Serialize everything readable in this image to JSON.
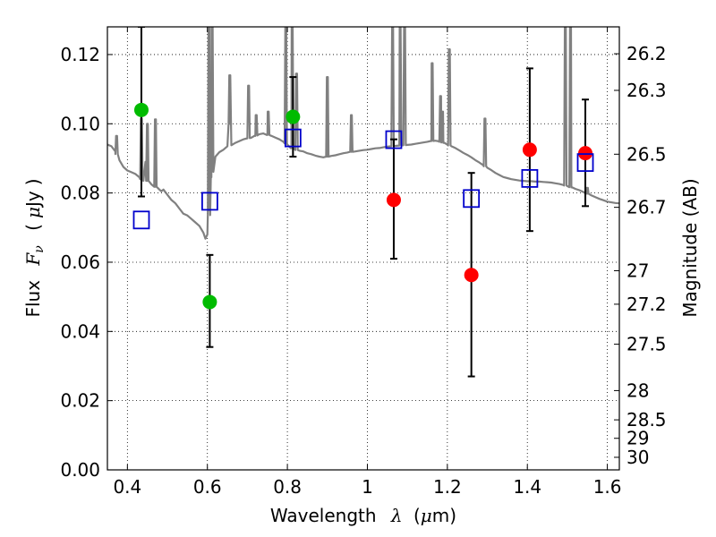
{
  "chart_data": {
    "type": "scatter",
    "title": "",
    "xlabel_text": "Wavelength",
    "xlabel_symbol": "λ",
    "xlabel_unit_open": "(",
    "xlabel_unit_mu": "μ",
    "xlabel_unit_rest": "m)",
    "ylabel_text": "Flux",
    "ylabel_symbol_F": "F",
    "ylabel_symbol_nu": "ν",
    "ylabel_unit_open": "(",
    "ylabel_unit_mu": "μ",
    "ylabel_unit_rest": "Jy",
    "ylabel_unit_close": ")",
    "ylabel_right": "Magnitude (AB)",
    "xlim": [
      0.35,
      1.63
    ],
    "ylim": [
      0.0,
      0.128
    ],
    "grid": true,
    "x_ticks": [
      0.4,
      0.6,
      0.8,
      1.0,
      1.2,
      1.4,
      1.6
    ],
    "x_tick_labels": [
      "0.4",
      "0.6",
      "0.8",
      "1",
      "1.2",
      "1.4",
      "1.6"
    ],
    "y_ticks": [
      0.0,
      0.02,
      0.04,
      0.06,
      0.08,
      0.1,
      0.12
    ],
    "y_tick_labels": [
      "0.00",
      "0.02",
      "0.04",
      "0.06",
      "0.08",
      "0.10",
      "0.12"
    ],
    "mag_ticks": [
      26.2,
      26.3,
      26.5,
      26.7,
      27,
      27.2,
      27.5,
      28,
      28.5,
      29,
      30
    ],
    "mag_tick_labels": [
      "26.2",
      "26.3",
      "26.5",
      "26.7",
      "27",
      "27.2",
      "27.5",
      "28",
      "28.5",
      "29",
      "30"
    ],
    "colors": {
      "green": "#00bb00",
      "red": "#ff0000",
      "model_square": "#0000cc",
      "spectrum": "#808080",
      "errorbar": "#000000"
    },
    "series": [
      {
        "marker": "circle",
        "color": "green",
        "points": [
          {
            "x": 0.435,
            "y": 0.104,
            "yerr_low": 0.079,
            "yerr_high": 0.128
          },
          {
            "x": 0.606,
            "y": 0.0485,
            "yerr_low": 0.0355,
            "yerr_high": 0.0621
          },
          {
            "x": 0.814,
            "y": 0.102,
            "yerr_low": 0.0905,
            "yerr_high": 0.1135
          }
        ]
      },
      {
        "marker": "circle",
        "color": "red",
        "points": [
          {
            "x": 1.066,
            "y": 0.078,
            "yerr_low": 0.061,
            "yerr_high": 0.0955
          },
          {
            "x": 1.26,
            "y": 0.0563,
            "yerr_low": 0.027,
            "yerr_high": 0.0858
          },
          {
            "x": 1.406,
            "y": 0.0925,
            "yerr_low": 0.069,
            "yerr_high": 0.116
          },
          {
            "x": 1.545,
            "y": 0.0915,
            "yerr_low": 0.0762,
            "yerr_high": 0.107
          }
        ]
      },
      {
        "marker": "square",
        "color": "model_square",
        "points": [
          {
            "x": 0.435,
            "y": 0.0722
          },
          {
            "x": 0.606,
            "y": 0.0776
          },
          {
            "x": 0.814,
            "y": 0.0959
          },
          {
            "x": 1.066,
            "y": 0.0954
          },
          {
            "x": 1.26,
            "y": 0.0784
          },
          {
            "x": 1.406,
            "y": 0.0842
          },
          {
            "x": 1.545,
            "y": 0.0888
          }
        ]
      }
    ],
    "spectrum": [
      [
        0.35,
        0.094
      ],
      [
        0.36,
        0.0935
      ],
      [
        0.37,
        0.092
      ],
      [
        0.38,
        0.0895
      ],
      [
        0.39,
        0.0875
      ],
      [
        0.4,
        0.0865
      ],
      [
        0.41,
        0.086
      ],
      [
        0.42,
        0.0855
      ],
      [
        0.43,
        0.0845
      ],
      [
        0.44,
        0.0835
      ],
      [
        0.445,
        0.089
      ],
      [
        0.45,
        0.0835
      ],
      [
        0.46,
        0.0825
      ],
      [
        0.47,
        0.0818
      ],
      [
        0.48,
        0.081
      ],
      [
        0.485,
        0.0805
      ],
      [
        0.49,
        0.081
      ],
      [
        0.5,
        0.0795
      ],
      [
        0.51,
        0.078
      ],
      [
        0.52,
        0.077
      ],
      [
        0.53,
        0.0755
      ],
      [
        0.54,
        0.074
      ],
      [
        0.55,
        0.0735
      ],
      [
        0.56,
        0.0725
      ],
      [
        0.57,
        0.0715
      ],
      [
        0.58,
        0.0705
      ],
      [
        0.585,
        0.0695
      ],
      [
        0.59,
        0.0685
      ],
      [
        0.595,
        0.0668
      ],
      [
        0.6,
        0.068
      ],
      [
        0.605,
        0.075
      ],
      [
        0.61,
        0.0845
      ],
      [
        0.615,
        0.0885
      ],
      [
        0.62,
        0.0905
      ],
      [
        0.63,
        0.0918
      ],
      [
        0.64,
        0.0925
      ],
      [
        0.65,
        0.0935
      ],
      [
        0.656,
        0.1
      ],
      [
        0.66,
        0.0938
      ],
      [
        0.67,
        0.0945
      ],
      [
        0.68,
        0.095
      ],
      [
        0.69,
        0.0955
      ],
      [
        0.7,
        0.0958
      ],
      [
        0.71,
        0.096
      ],
      [
        0.72,
        0.0965
      ],
      [
        0.73,
        0.097
      ],
      [
        0.74,
        0.0972
      ],
      [
        0.75,
        0.0968
      ],
      [
        0.76,
        0.0965
      ],
      [
        0.77,
        0.096
      ],
      [
        0.78,
        0.0955
      ],
      [
        0.79,
        0.0948
      ],
      [
        0.8,
        0.094
      ],
      [
        0.81,
        0.093
      ],
      [
        0.82,
        0.0925
      ],
      [
        0.83,
        0.0922
      ],
      [
        0.84,
        0.092
      ],
      [
        0.85,
        0.0915
      ],
      [
        0.86,
        0.0912
      ],
      [
        0.87,
        0.0908
      ],
      [
        0.88,
        0.0905
      ],
      [
        0.89,
        0.0903
      ],
      [
        0.9,
        0.0905
      ],
      [
        0.91,
        0.0907
      ],
      [
        0.92,
        0.0909
      ],
      [
        0.93,
        0.0912
      ],
      [
        0.94,
        0.0915
      ],
      [
        0.95,
        0.0917
      ],
      [
        0.96,
        0.0919
      ],
      [
        0.97,
        0.092
      ],
      [
        0.98,
        0.0922
      ],
      [
        0.99,
        0.0924
      ],
      [
        1.0,
        0.0925
      ],
      [
        1.01,
        0.0927
      ],
      [
        1.02,
        0.0929
      ],
      [
        1.03,
        0.093
      ],
      [
        1.04,
        0.0932
      ],
      [
        1.05,
        0.0934
      ],
      [
        1.06,
        0.0935
      ],
      [
        1.07,
        0.0936
      ],
      [
        1.08,
        0.0937
      ],
      [
        1.09,
        0.0938
      ],
      [
        1.1,
        0.0939
      ],
      [
        1.11,
        0.094
      ],
      [
        1.12,
        0.0942
      ],
      [
        1.13,
        0.0944
      ],
      [
        1.14,
        0.0946
      ],
      [
        1.15,
        0.0948
      ],
      [
        1.16,
        0.095
      ],
      [
        1.17,
        0.0951
      ],
      [
        1.18,
        0.0949
      ],
      [
        1.19,
        0.0945
      ],
      [
        1.2,
        0.094
      ],
      [
        1.21,
        0.0935
      ],
      [
        1.22,
        0.093
      ],
      [
        1.23,
        0.0923
      ],
      [
        1.24,
        0.0916
      ],
      [
        1.25,
        0.091
      ],
      [
        1.26,
        0.0903
      ],
      [
        1.27,
        0.0895
      ],
      [
        1.28,
        0.0888
      ],
      [
        1.29,
        0.088
      ],
      [
        1.3,
        0.0873
      ],
      [
        1.31,
        0.0866
      ],
      [
        1.32,
        0.0858
      ],
      [
        1.33,
        0.0852
      ],
      [
        1.34,
        0.0846
      ],
      [
        1.35,
        0.0843
      ],
      [
        1.36,
        0.084
      ],
      [
        1.37,
        0.0838
      ],
      [
        1.38,
        0.0836
      ],
      [
        1.39,
        0.0835
      ],
      [
        1.4,
        0.0834
      ],
      [
        1.41,
        0.0834
      ],
      [
        1.42,
        0.0833
      ],
      [
        1.43,
        0.0833
      ],
      [
        1.44,
        0.0832
      ],
      [
        1.45,
        0.0831
      ],
      [
        1.46,
        0.083
      ],
      [
        1.47,
        0.0828
      ],
      [
        1.48,
        0.0826
      ],
      [
        1.49,
        0.0823
      ],
      [
        1.5,
        0.082
      ],
      [
        1.51,
        0.0816
      ],
      [
        1.52,
        0.0812
      ],
      [
        1.53,
        0.0808
      ],
      [
        1.54,
        0.0803
      ],
      [
        1.55,
        0.0798
      ],
      [
        1.56,
        0.0793
      ],
      [
        1.57,
        0.0788
      ],
      [
        1.58,
        0.0783
      ],
      [
        1.59,
        0.0779
      ],
      [
        1.6,
        0.0775
      ],
      [
        1.61,
        0.0773
      ],
      [
        1.62,
        0.0771
      ],
      [
        1.63,
        0.077
      ]
    ],
    "emission_lines": [
      {
        "x": 0.373,
        "peak": 0.0965
      },
      {
        "x": 0.435,
        "peak": 0.1015
      },
      {
        "x": 0.45,
        "peak": 0.1
      },
      {
        "x": 0.47,
        "peak": 0.1013
      },
      {
        "x": 0.604,
        "peak": 0.128
      },
      {
        "x": 0.612,
        "peak": 0.128
      },
      {
        "x": 0.656,
        "peak": 0.114
      },
      {
        "x": 0.703,
        "peak": 0.111
      },
      {
        "x": 0.722,
        "peak": 0.1025
      },
      {
        "x": 0.752,
        "peak": 0.1035
      },
      {
        "x": 0.796,
        "peak": 0.128
      },
      {
        "x": 0.812,
        "peak": 0.128
      },
      {
        "x": 0.823,
        "peak": 0.1145
      },
      {
        "x": 0.9,
        "peak": 0.1135
      },
      {
        "x": 0.96,
        "peak": 0.1025
      },
      {
        "x": 1.063,
        "peak": 0.128
      },
      {
        "x": 1.082,
        "peak": 0.128
      },
      {
        "x": 1.093,
        "peak": 0.128
      },
      {
        "x": 1.162,
        "peak": 0.1175
      },
      {
        "x": 1.183,
        "peak": 0.108
      },
      {
        "x": 1.188,
        "peak": 0.1035
      },
      {
        "x": 1.205,
        "peak": 0.1215
      },
      {
        "x": 1.294,
        "peak": 0.1015
      },
      {
        "x": 1.495,
        "peak": 0.128
      },
      {
        "x": 1.508,
        "peak": 0.128
      },
      {
        "x": 1.55,
        "peak": 0.0815
      }
    ]
  }
}
